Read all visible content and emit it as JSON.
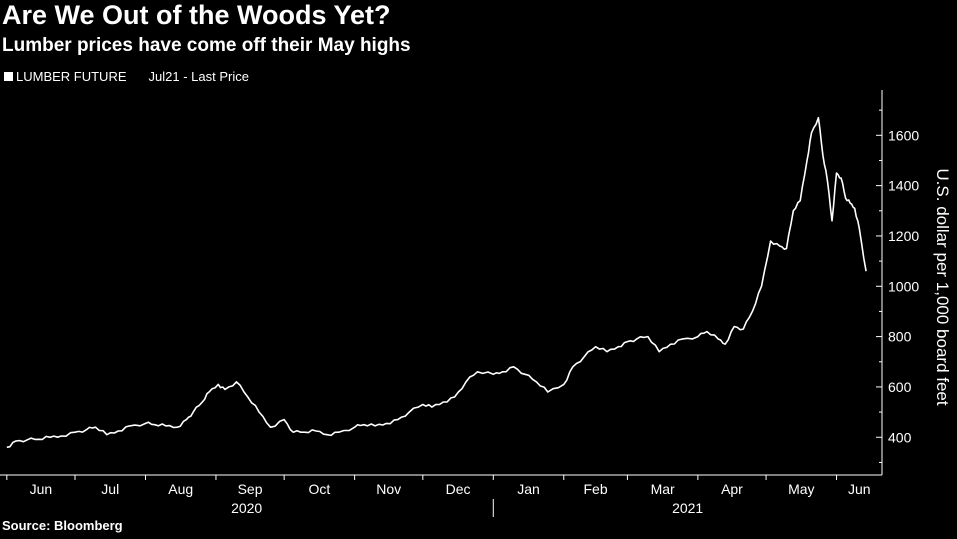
{
  "header": {
    "title": "Are We Out of the Woods Yet?",
    "subtitle": "Lumber prices have come off their May highs"
  },
  "legend": {
    "security": "LUMBER FUTURE",
    "field": "Jul21 - Last Price"
  },
  "footer": {
    "source": "Source: Bloomberg"
  },
  "colors": {
    "background": "#000000",
    "line": "#ffffff",
    "axis": "#ffffff"
  },
  "chart_data": {
    "type": "line",
    "title": "Are We Out of the Woods Yet?",
    "subtitle": "Lumber prices have come off their May highs",
    "ylabel": "U.S. dollar per 1,000 board feet",
    "xlabel": "",
    "ylim": [
      250,
      1780
    ],
    "y_ticks": [
      400,
      600,
      800,
      1000,
      1200,
      1400,
      1600
    ],
    "y_axis_position": "right",
    "grid": false,
    "legend_position": "top-left",
    "x_ticks": [
      "Jun",
      "Jul",
      "Aug",
      "Sep",
      "Oct",
      "Nov",
      "Dec",
      "Jan",
      "Feb",
      "Mar",
      "Apr",
      "May",
      "Jun"
    ],
    "x_years": [
      "2020",
      "2021"
    ],
    "series": [
      {
        "name": "LUMBER FUTURE Jul21 - Last Price",
        "x": [
          "2020-06-01",
          "2020-06-05",
          "2020-06-10",
          "2020-06-15",
          "2020-06-20",
          "2020-06-25",
          "2020-07-01",
          "2020-07-06",
          "2020-07-10",
          "2020-07-15",
          "2020-07-20",
          "2020-07-25",
          "2020-08-01",
          "2020-08-05",
          "2020-08-10",
          "2020-08-15",
          "2020-08-19",
          "2020-08-22",
          "2020-08-26",
          "2020-08-29",
          "2020-09-02",
          "2020-09-05",
          "2020-09-10",
          "2020-09-15",
          "2020-09-20",
          "2020-09-25",
          "2020-10-01",
          "2020-10-05",
          "2020-10-10",
          "2020-10-15",
          "2020-10-20",
          "2020-10-25",
          "2020-11-01",
          "2020-11-05",
          "2020-11-10",
          "2020-11-15",
          "2020-11-20",
          "2020-11-25",
          "2020-12-01",
          "2020-12-05",
          "2020-12-10",
          "2020-12-15",
          "2020-12-20",
          "2020-12-25",
          "2021-01-01",
          "2021-01-05",
          "2021-01-10",
          "2021-01-15",
          "2021-01-20",
          "2021-01-25",
          "2021-02-01",
          "2021-02-05",
          "2021-02-10",
          "2021-02-15",
          "2021-02-20",
          "2021-02-25",
          "2021-03-01",
          "2021-03-05",
          "2021-03-10",
          "2021-03-15",
          "2021-03-20",
          "2021-03-25",
          "2021-04-01",
          "2021-04-05",
          "2021-04-10",
          "2021-04-13",
          "2021-04-17",
          "2021-04-21",
          "2021-04-25",
          "2021-04-29",
          "2021-05-03",
          "2021-05-07",
          "2021-05-10",
          "2021-05-13",
          "2021-05-16",
          "2021-05-19",
          "2021-05-21",
          "2021-05-24",
          "2021-05-26",
          "2021-05-28",
          "2021-05-30",
          "2021-06-01",
          "2021-06-03",
          "2021-06-05",
          "2021-06-07",
          "2021-06-09",
          "2021-06-11",
          "2021-06-14"
        ],
        "y": [
          360,
          385,
          390,
          392,
          400,
          405,
          420,
          430,
          440,
          410,
          425,
          445,
          455,
          450,
          445,
          440,
          470,
          500,
          540,
          580,
          610,
          590,
          620,
          560,
          500,
          440,
          470,
          420,
          420,
          425,
          410,
          420,
          440,
          450,
          445,
          455,
          470,
          500,
          530,
          520,
          540,
          560,
          620,
          660,
          650,
          660,
          680,
          650,
          620,
          580,
          610,
          680,
          720,
          760,
          740,
          760,
          780,
          790,
          800,
          740,
          770,
          790,
          800,
          820,
          790,
          770,
          840,
          830,
          900,
          1000,
          1180,
          1160,
          1150,
          1300,
          1340,
          1500,
          1610,
          1670,
          1520,
          1420,
          1260,
          1450,
          1430,
          1350,
          1330,
          1310,
          1230,
          1060
        ]
      }
    ]
  }
}
